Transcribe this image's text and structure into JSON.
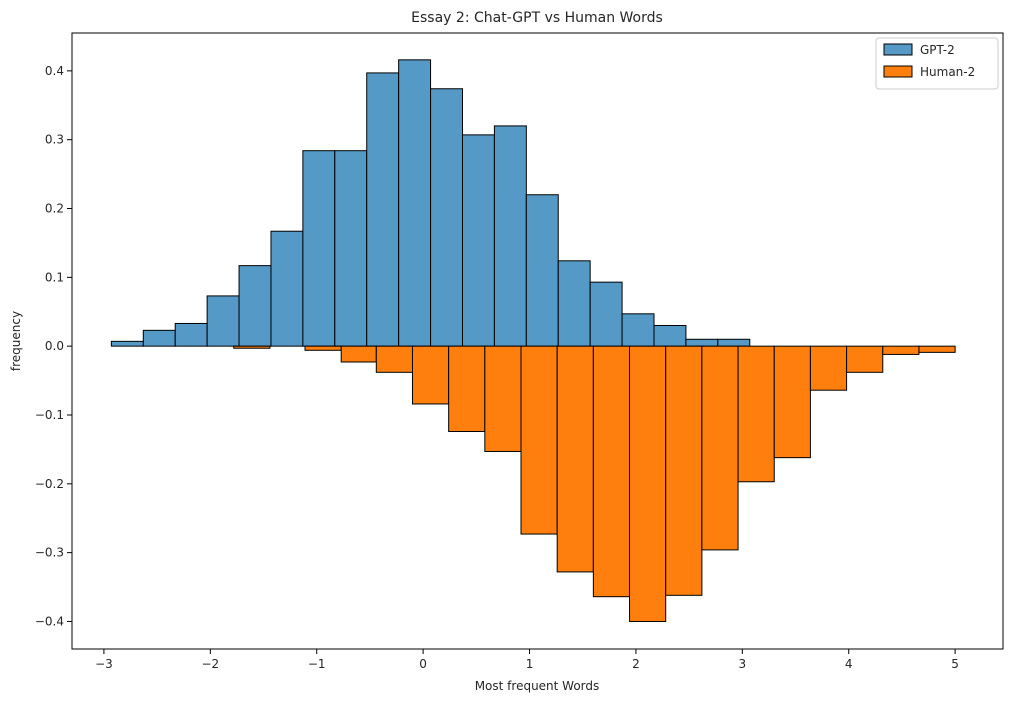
{
  "chart_data": {
    "type": "bar",
    "title": "Essay 2: Chat-GPT vs Human Words",
    "xlabel": "Most frequent Words",
    "ylabel": "frequency",
    "xlim": [
      -3.3,
      5.45
    ],
    "ylim": [
      -0.44,
      0.455
    ],
    "xticks": [
      -3,
      -2,
      -1,
      0,
      1,
      2,
      3,
      4,
      5
    ],
    "xtick_labels": [
      "−3",
      "−2",
      "−1",
      "0",
      "1",
      "2",
      "3",
      "4",
      "5"
    ],
    "yticks": [
      -0.4,
      -0.3,
      -0.2,
      -0.1,
      0.0,
      0.1,
      0.2,
      0.3,
      0.4
    ],
    "ytick_labels": [
      "−0.4",
      "−0.3",
      "−0.2",
      "−0.1",
      "0.0",
      "0.1",
      "0.2",
      "0.3",
      "0.4"
    ],
    "grid": false,
    "legend_position": "top-right",
    "series": [
      {
        "name": "GPT-2",
        "color": "#5599c7",
        "bins": [
          {
            "x0": -2.93,
            "x1": -2.63,
            "value": 0.007
          },
          {
            "x0": -2.63,
            "x1": -2.33,
            "value": 0.023
          },
          {
            "x0": -2.33,
            "x1": -2.03,
            "value": 0.033
          },
          {
            "x0": -2.03,
            "x1": -1.73,
            "value": 0.073
          },
          {
            "x0": -1.73,
            "x1": -1.43,
            "value": 0.117
          },
          {
            "x0": -1.43,
            "x1": -1.13,
            "value": 0.167
          },
          {
            "x0": -1.13,
            "x1": -0.83,
            "value": 0.284
          },
          {
            "x0": -0.83,
            "x1": -0.53,
            "value": 0.284
          },
          {
            "x0": -0.53,
            "x1": -0.23,
            "value": 0.397
          },
          {
            "x0": -0.23,
            "x1": 0.07,
            "value": 0.416
          },
          {
            "x0": 0.07,
            "x1": 0.37,
            "value": 0.374
          },
          {
            "x0": 0.37,
            "x1": 0.67,
            "value": 0.307
          },
          {
            "x0": 0.67,
            "x1": 0.97,
            "value": 0.32
          },
          {
            "x0": 0.97,
            "x1": 1.27,
            "value": 0.22
          },
          {
            "x0": 1.27,
            "x1": 1.57,
            "value": 0.124
          },
          {
            "x0": 1.57,
            "x1": 1.87,
            "value": 0.093
          },
          {
            "x0": 1.87,
            "x1": 2.17,
            "value": 0.047
          },
          {
            "x0": 2.17,
            "x1": 2.47,
            "value": 0.03
          },
          {
            "x0": 2.47,
            "x1": 2.77,
            "value": 0.01
          },
          {
            "x0": 2.77,
            "x1": 3.07,
            "value": 0.01
          }
        ]
      },
      {
        "name": "Human-2",
        "color": "#ff7f0e",
        "bins": [
          {
            "x0": -1.78,
            "x1": -1.44,
            "value": -0.003
          },
          {
            "x0": -1.11,
            "x1": -0.77,
            "value": -0.006
          },
          {
            "x0": -0.77,
            "x1": -0.44,
            "value": -0.023
          },
          {
            "x0": -0.44,
            "x1": -0.1,
            "value": -0.038
          },
          {
            "x0": -0.1,
            "x1": 0.24,
            "value": -0.084
          },
          {
            "x0": 0.24,
            "x1": 0.58,
            "value": -0.124
          },
          {
            "x0": 0.58,
            "x1": 0.92,
            "value": -0.153
          },
          {
            "x0": 0.92,
            "x1": 1.26,
            "value": -0.273
          },
          {
            "x0": 1.26,
            "x1": 1.6,
            "value": -0.328
          },
          {
            "x0": 1.6,
            "x1": 1.94,
            "value": -0.364
          },
          {
            "x0": 1.94,
            "x1": 2.28,
            "value": -0.4
          },
          {
            "x0": 2.28,
            "x1": 2.62,
            "value": -0.362
          },
          {
            "x0": 2.62,
            "x1": 2.96,
            "value": -0.296
          },
          {
            "x0": 2.96,
            "x1": 3.3,
            "value": -0.197
          },
          {
            "x0": 3.3,
            "x1": 3.64,
            "value": -0.162
          },
          {
            "x0": 3.64,
            "x1": 3.98,
            "value": -0.064
          },
          {
            "x0": 3.98,
            "x1": 4.32,
            "value": -0.038
          },
          {
            "x0": 4.32,
            "x1": 4.66,
            "value": -0.012
          },
          {
            "x0": 4.66,
            "x1": 5.0,
            "value": -0.009
          }
        ]
      }
    ]
  }
}
